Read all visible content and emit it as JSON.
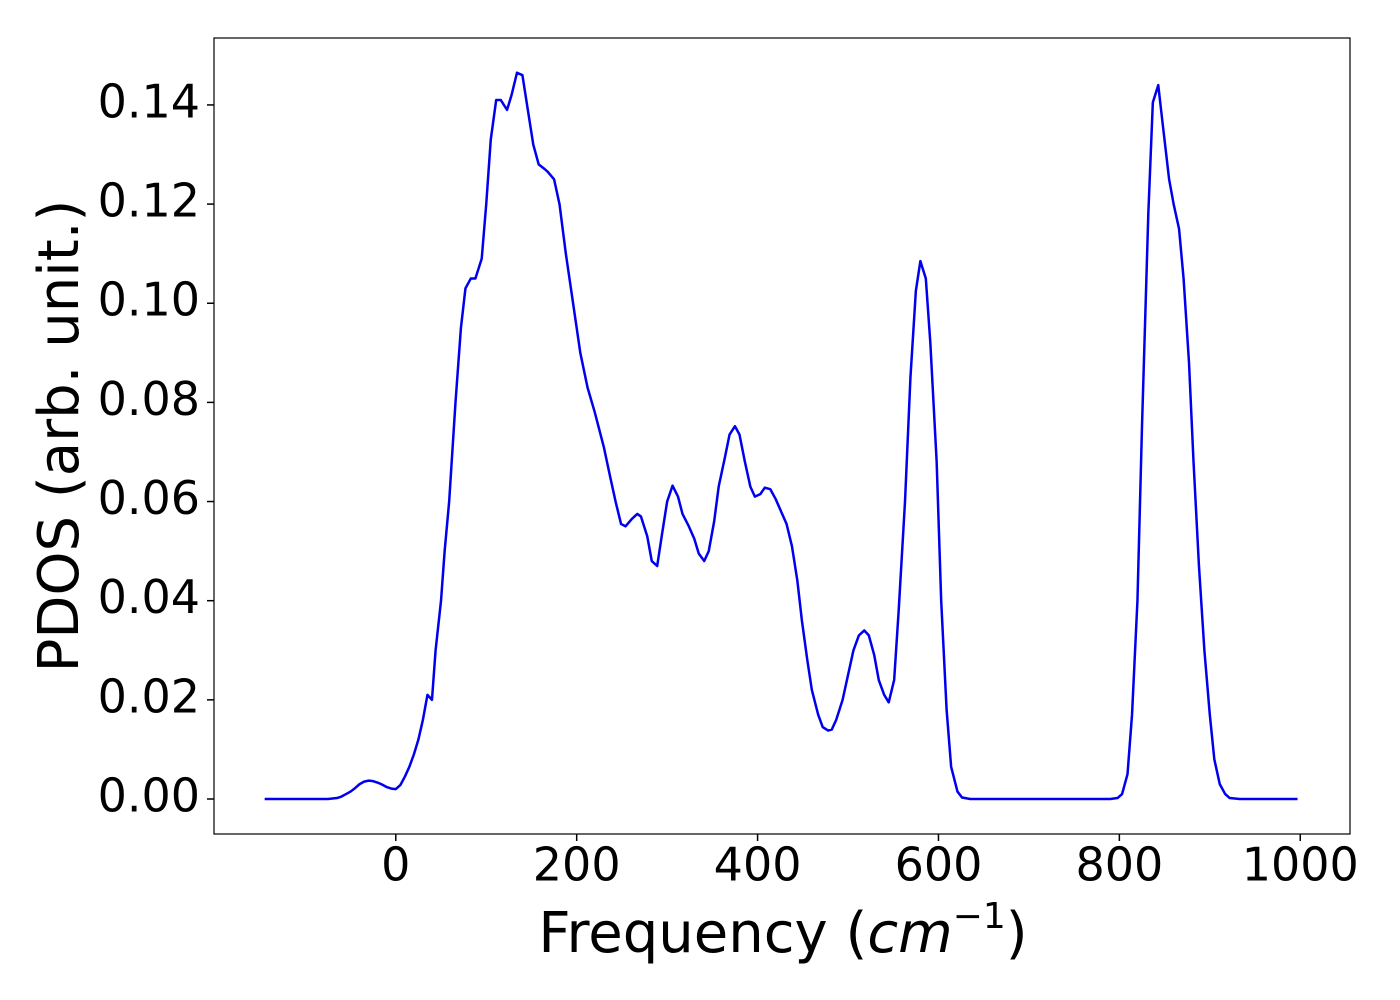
{
  "chart_data": {
    "type": "line",
    "xlabel": [
      "Frequency (",
      "cm",
      "−1",
      ")"
    ],
    "ylabel": "PDOS (arb. unit.)",
    "xlim": [
      -201,
      1055
    ],
    "ylim": [
      -0.00706,
      0.1535
    ],
    "xticks": [
      0,
      200,
      400,
      600,
      800,
      1000
    ],
    "yticks": [
      {
        "value": 0,
        "label": "0.00"
      },
      {
        "value": 0.02,
        "label": "0.02"
      },
      {
        "value": 0.04,
        "label": "0.04"
      },
      {
        "value": 0.06,
        "label": "0.06"
      },
      {
        "value": 0.08,
        "label": "0.08"
      },
      {
        "value": 0.1,
        "label": "0.10"
      },
      {
        "value": 0.12,
        "label": "0.12"
      },
      {
        "value": 0.14,
        "label": "0.14"
      }
    ],
    "grid": false,
    "x": [
      -145,
      -90,
      -75,
      -65,
      -60,
      -55,
      -50,
      -45,
      -40,
      -35,
      -30,
      -25,
      -20,
      -15,
      -10,
      -5,
      0,
      5,
      10,
      15,
      20,
      25,
      30,
      35,
      40,
      44,
      50,
      54,
      59,
      66,
      72,
      77,
      83,
      88,
      95,
      100,
      105,
      111,
      116,
      123,
      128,
      134,
      140,
      146,
      152,
      158,
      165,
      168,
      175,
      181,
      188,
      196,
      204,
      212,
      220,
      230,
      237,
      243,
      249,
      254,
      261,
      267,
      271,
      278,
      283,
      289,
      294,
      300,
      306,
      312,
      317,
      324,
      330,
      335,
      341,
      346,
      352,
      357,
      364,
      369,
      375,
      380,
      386,
      392,
      397,
      403,
      408,
      414,
      420,
      426,
      432,
      438,
      444,
      449,
      455,
      460,
      467,
      472,
      478,
      482,
      487,
      494,
      500,
      506,
      512,
      518,
      523,
      529,
      534,
      540,
      545,
      551,
      556,
      563,
      569,
      575,
      580,
      586,
      591,
      598,
      603,
      609,
      614,
      621,
      626,
      635,
      790,
      798,
      803,
      809,
      814,
      820,
      825,
      832,
      837,
      843,
      848,
      855,
      860,
      866,
      871,
      877,
      882,
      888,
      894,
      900,
      905,
      911,
      917,
      922,
      933,
      997
    ],
    "series": [
      {
        "name": "PDOS",
        "color": "#0000ee",
        "values": [
          0,
          0,
          0,
          0.0002,
          0.0005,
          0.001,
          0.0015,
          0.0022,
          0.003,
          0.0035,
          0.0037,
          0.0036,
          0.0033,
          0.0029,
          0.0024,
          0.0021,
          0.002,
          0.0028,
          0.0045,
          0.0065,
          0.009,
          0.012,
          0.016,
          0.021,
          0.02,
          0.03,
          0.04,
          0.05,
          0.06,
          0.08,
          0.095,
          0.103,
          0.105,
          0.105,
          0.109,
          0.12,
          0.133,
          0.141,
          0.141,
          0.139,
          0.142,
          0.1465,
          0.146,
          0.139,
          0.132,
          0.128,
          0.127,
          0.1265,
          0.125,
          0.12,
          0.11,
          0.1,
          0.09,
          0.083,
          0.078,
          0.071,
          0.065,
          0.06,
          0.0555,
          0.055,
          0.0565,
          0.0575,
          0.057,
          0.053,
          0.048,
          0.047,
          0.053,
          0.06,
          0.0632,
          0.061,
          0.0575,
          0.055,
          0.0525,
          0.0495,
          0.048,
          0.05,
          0.056,
          0.063,
          0.069,
          0.0735,
          0.0752,
          0.0735,
          0.068,
          0.063,
          0.061,
          0.0615,
          0.0628,
          0.0625,
          0.0605,
          0.058,
          0.0555,
          0.051,
          0.044,
          0.036,
          0.028,
          0.022,
          0.017,
          0.0145,
          0.0138,
          0.014,
          0.016,
          0.02,
          0.025,
          0.03,
          0.033,
          0.034,
          0.033,
          0.029,
          0.024,
          0.021,
          0.0195,
          0.024,
          0.038,
          0.06,
          0.085,
          0.1025,
          0.1085,
          0.105,
          0.092,
          0.068,
          0.04,
          0.018,
          0.0065,
          0.0015,
          0.0003,
          0,
          0,
          0.0002,
          0.001,
          0.005,
          0.017,
          0.04,
          0.075,
          0.118,
          0.1405,
          0.144,
          0.136,
          0.125,
          0.12,
          0.115,
          0.105,
          0.088,
          0.068,
          0.047,
          0.03,
          0.017,
          0.008,
          0.003,
          0.001,
          0.0002,
          0,
          0
        ]
      }
    ]
  }
}
